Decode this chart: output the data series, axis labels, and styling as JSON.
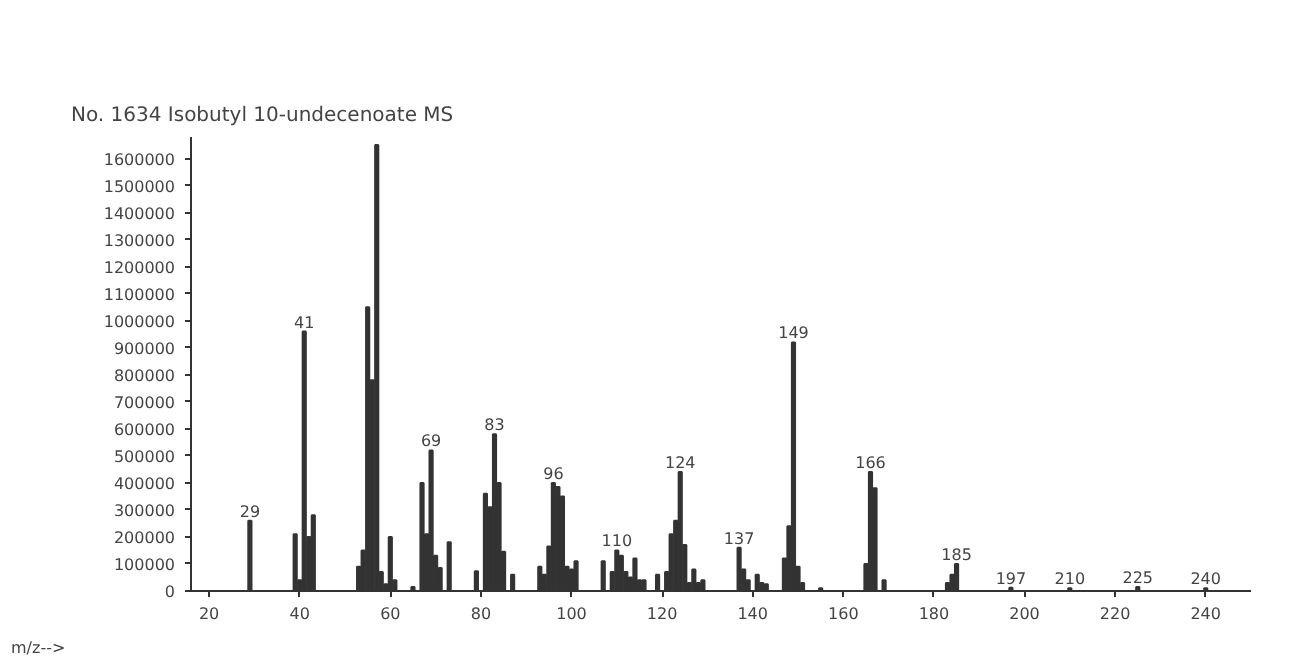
{
  "chart_data": {
    "type": "bar",
    "title": "No. 1634 Isobutyl 10-undecenoate MS",
    "xlabel": "m/z-->",
    "x": [
      29,
      39,
      40,
      41,
      42,
      43,
      53,
      54,
      55,
      56,
      57,
      58,
      59,
      60,
      61,
      65,
      67,
      68,
      69,
      70,
      71,
      73,
      79,
      81,
      82,
      83,
      84,
      85,
      87,
      93,
      94,
      95,
      96,
      97,
      98,
      99,
      100,
      101,
      107,
      109,
      110,
      111,
      112,
      113,
      114,
      115,
      116,
      119,
      121,
      122,
      123,
      124,
      125,
      126,
      127,
      128,
      129,
      137,
      138,
      139,
      141,
      142,
      143,
      147,
      148,
      149,
      150,
      151,
      155,
      165,
      166,
      167,
      169,
      183,
      184,
      185,
      197,
      210,
      225,
      240
    ],
    "values": [
      260000,
      210000,
      40000,
      960000,
      200000,
      280000,
      90000,
      150000,
      1050000,
      780000,
      1650000,
      70000,
      25000,
      200000,
      40000,
      15000,
      400000,
      210000,
      520000,
      130000,
      85000,
      180000,
      73000,
      360000,
      310000,
      580000,
      400000,
      145000,
      60000,
      90000,
      60000,
      165000,
      400000,
      385000,
      350000,
      90000,
      80000,
      110000,
      110000,
      70000,
      150000,
      130000,
      70000,
      50000,
      120000,
      40000,
      40000,
      60000,
      70000,
      210000,
      260000,
      440000,
      170000,
      30000,
      80000,
      30000,
      40000,
      160000,
      80000,
      40000,
      60000,
      30000,
      25000,
      120000,
      240000,
      920000,
      90000,
      30000,
      10000,
      100000,
      440000,
      380000,
      40000,
      30000,
      60000,
      100000,
      12000,
      10000,
      15000,
      10000
    ],
    "color": "#333333",
    "xlim": [
      16,
      250
    ],
    "xticks": [
      20,
      40,
      60,
      80,
      100,
      120,
      140,
      160,
      180,
      200,
      220,
      240
    ],
    "ylim": [
      0,
      1680000
    ],
    "yticks": [
      0,
      100000,
      200000,
      300000,
      400000,
      500000,
      600000,
      700000,
      800000,
      900000,
      1000000,
      1100000,
      1200000,
      1300000,
      1400000,
      1500000,
      1600000
    ],
    "grid": false,
    "annotations": [
      {
        "text": "29",
        "x": 29,
        "y": 260000
      },
      {
        "text": "41",
        "x": 41,
        "y": 960000
      },
      {
        "text": "69",
        "x": 69,
        "y": 520000
      },
      {
        "text": "83",
        "x": 83,
        "y": 580000
      },
      {
        "text": "96",
        "x": 96,
        "y": 400000
      },
      {
        "text": "110",
        "x": 110,
        "y": 150000
      },
      {
        "text": "124",
        "x": 124,
        "y": 440000
      },
      {
        "text": "137",
        "x": 137,
        "y": 160000
      },
      {
        "text": "149",
        "x": 149,
        "y": 920000
      },
      {
        "text": "166",
        "x": 166,
        "y": 440000
      },
      {
        "text": "185",
        "x": 185,
        "y": 100000
      },
      {
        "text": "197",
        "x": 197,
        "y": 12000
      },
      {
        "text": "210",
        "x": 210,
        "y": 10000
      },
      {
        "text": "225",
        "x": 225,
        "y": 15000
      },
      {
        "text": "240",
        "x": 240,
        "y": 10000
      }
    ]
  }
}
